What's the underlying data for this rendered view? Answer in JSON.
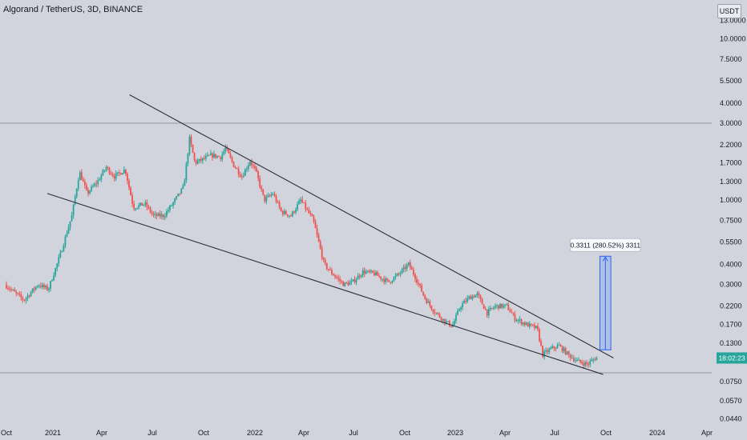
{
  "header": {
    "title": "Algorand / TetherUS, 3D, BINANCE",
    "currency": "USDT"
  },
  "chart_data": {
    "type": "candlestick",
    "symbol": "Algorand / TetherUS",
    "interval": "3D",
    "exchange": "BINANCE",
    "y_scale": "log",
    "y_ticks": [
      "13.0000",
      "10.0000",
      "7.5000",
      "5.5000",
      "4.0000",
      "3.0000",
      "2.2000",
      "1.7000",
      "1.3000",
      "1.0000",
      "0.7500",
      "0.5500",
      "0.4000",
      "0.3000",
      "0.2200",
      "0.1700",
      "0.1300",
      "0.0750",
      "0.0570",
      "0.0440"
    ],
    "x_ticks": [
      "Oct",
      "2021",
      "Apr",
      "Jul",
      "Oct",
      "2022",
      "Apr",
      "Jul",
      "Oct",
      "2023",
      "Apr",
      "Jul",
      "Oct",
      "2024",
      "Apr"
    ],
    "current_price_label": "18:02:23",
    "horizontal_levels": [
      3.0,
      0.085
    ],
    "price_path": [
      [
        "2020-10-01",
        0.3
      ],
      [
        "2020-11-05",
        0.24
      ],
      [
        "2020-12-01",
        0.3
      ],
      [
        "2020-12-20",
        0.28
      ],
      [
        "2021-01-10",
        0.45
      ],
      [
        "2021-02-01",
        0.8
      ],
      [
        "2021-02-15",
        1.5
      ],
      [
        "2021-03-01",
        1.1
      ],
      [
        "2021-03-20",
        1.3
      ],
      [
        "2021-04-05",
        1.6
      ],
      [
        "2021-04-20",
        1.4
      ],
      [
        "2021-05-10",
        1.55
      ],
      [
        "2021-05-25",
        0.9
      ],
      [
        "2021-06-15",
        0.95
      ],
      [
        "2021-07-01",
        0.8
      ],
      [
        "2021-07-20",
        0.8
      ],
      [
        "2021-08-05",
        0.95
      ],
      [
        "2021-08-25",
        1.2
      ],
      [
        "2021-09-05",
        2.4
      ],
      [
        "2021-09-15",
        1.7
      ],
      [
        "2021-10-01",
        1.8
      ],
      [
        "2021-10-15",
        1.9
      ],
      [
        "2021-11-01",
        1.85
      ],
      [
        "2021-11-10",
        2.1
      ],
      [
        "2021-11-25",
        1.65
      ],
      [
        "2021-12-10",
        1.4
      ],
      [
        "2021-12-25",
        1.75
      ],
      [
        "2022-01-05",
        1.5
      ],
      [
        "2022-01-20",
        1.0
      ],
      [
        "2022-02-05",
        1.1
      ],
      [
        "2022-02-20",
        0.85
      ],
      [
        "2022-03-10",
        0.8
      ],
      [
        "2022-03-28",
        1.0
      ],
      [
        "2022-04-20",
        0.75
      ],
      [
        "2022-05-10",
        0.4
      ],
      [
        "2022-05-25",
        0.35
      ],
      [
        "2022-06-15",
        0.3
      ],
      [
        "2022-07-01",
        0.31
      ],
      [
        "2022-07-20",
        0.36
      ],
      [
        "2022-08-10",
        0.35
      ],
      [
        "2022-09-05",
        0.31
      ],
      [
        "2022-09-25",
        0.35
      ],
      [
        "2022-10-12",
        0.4
      ],
      [
        "2022-10-25",
        0.33
      ],
      [
        "2022-11-10",
        0.25
      ],
      [
        "2022-11-25",
        0.21
      ],
      [
        "2022-12-15",
        0.18
      ],
      [
        "2022-12-31",
        0.165
      ],
      [
        "2023-01-15",
        0.22
      ],
      [
        "2023-02-01",
        0.25
      ],
      [
        "2023-02-15",
        0.26
      ],
      [
        "2023-03-05",
        0.2
      ],
      [
        "2023-03-20",
        0.22
      ],
      [
        "2023-04-10",
        0.22
      ],
      [
        "2023-04-25",
        0.185
      ],
      [
        "2023-05-15",
        0.17
      ],
      [
        "2023-06-05",
        0.16
      ],
      [
        "2023-06-15",
        0.11
      ],
      [
        "2023-07-01",
        0.12
      ],
      [
        "2023-07-15",
        0.125
      ],
      [
        "2023-08-01",
        0.11
      ],
      [
        "2023-08-18",
        0.1
      ],
      [
        "2023-09-05",
        0.096
      ],
      [
        "2023-09-20",
        0.105
      ]
    ],
    "drawings": {
      "upper_trendline": [
        [
          "2021-05-15",
          4.5
        ],
        [
          "2023-10-20",
          0.105
        ]
      ],
      "lower_trendline": [
        [
          "2020-12-15",
          1.1
        ],
        [
          "2023-10-01",
          0.083
        ]
      ],
      "projection_box": {
        "x_range": [
          "2023-09-25",
          "2023-10-15"
        ],
        "y_range": [
          0.118,
          0.449
        ],
        "label": "0.3311 (280.52%) 3311"
      }
    },
    "colors": {
      "up": "#26a69a",
      "down": "#ef5350",
      "background": "#d1d4dc",
      "trendline": "#2a2e39",
      "projection_fill": "#a6bbe6",
      "projection_stroke": "#2962ff",
      "last_price_bg": "#26a69a"
    }
  }
}
